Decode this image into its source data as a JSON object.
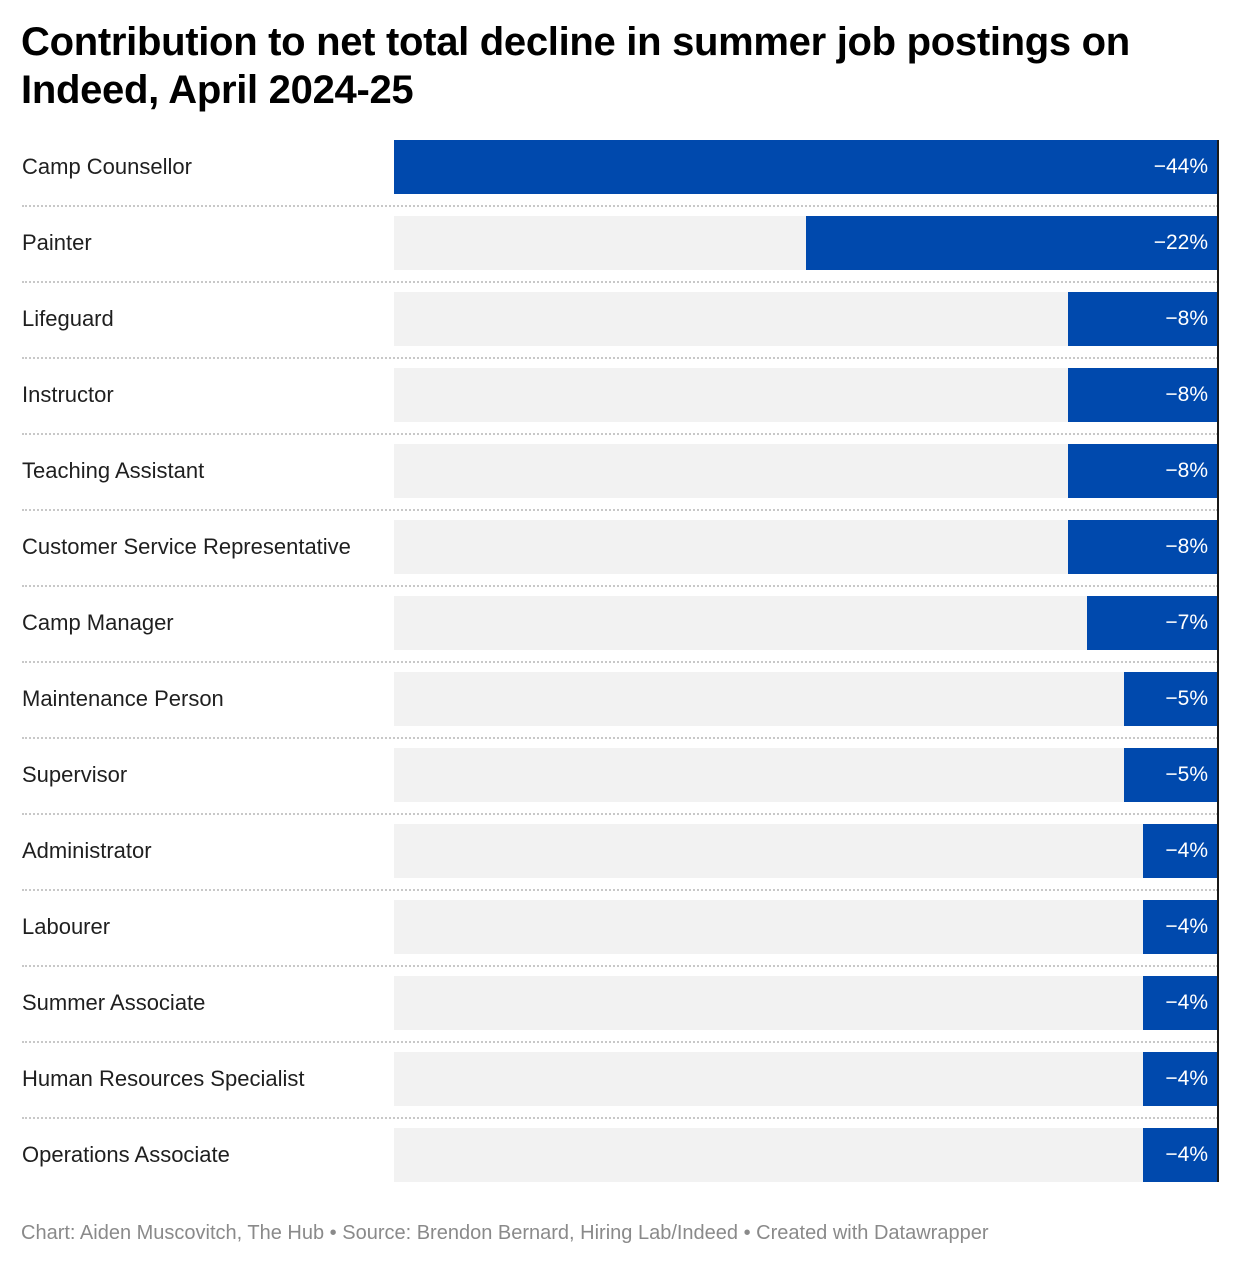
{
  "title": "Contribution to net total decline in summer job postings on Indeed, April 2024-25",
  "colors": {
    "bar": "#0049ad",
    "track": "#f2f2f2",
    "value_text": "#ffffff"
  },
  "chart_data": {
    "type": "bar",
    "orientation": "horizontal",
    "title": "Contribution to net total decline in summer job postings on Indeed, April 2024-25",
    "categories": [
      "Camp Counsellor",
      "Painter",
      "Lifeguard",
      "Instructor",
      "Teaching Assistant",
      "Customer Service Representative",
      "Camp Manager",
      "Maintenance Person",
      "Supervisor",
      "Administrator",
      "Labourer",
      "Summer Associate",
      "Human Resources Specialist",
      "Operations Associate"
    ],
    "values": [
      -44,
      -22,
      -8,
      -8,
      -8,
      -8,
      -7,
      -5,
      -5,
      -4,
      -4,
      -4,
      -4,
      -4
    ],
    "labels": [
      "−44%",
      "−22%",
      "−8%",
      "−8%",
      "−8%",
      "−8%",
      "−7%",
      "−5%",
      "−5%",
      "−4%",
      "−4%",
      "−4%",
      "−4%",
      "−4%"
    ],
    "xlim": [
      -44,
      0
    ],
    "unit": "%",
    "grid": false
  },
  "footer": "Chart: Aiden Muscovitch, The Hub • Source: Brendon Bernard, Hiring Lab/Indeed • Created with Datawrapper"
}
